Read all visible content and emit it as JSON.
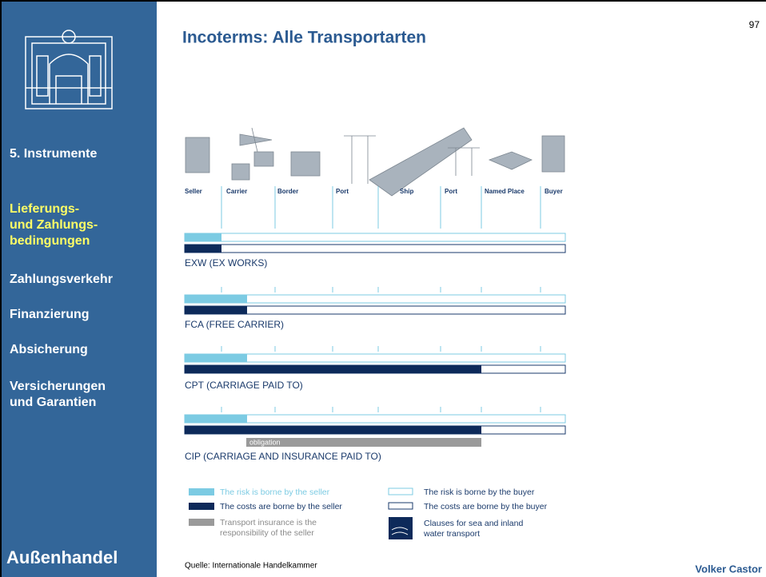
{
  "page_number": "97",
  "title": "Incoterms: Alle Transportarten",
  "sidebar": {
    "items": [
      {
        "lines": [
          "5. Instrumente"
        ]
      },
      {
        "lines": [
          "Lieferungs-",
          "und Zahlungs-",
          "bedingungen"
        ]
      },
      {
        "lines": [
          "Zahlungsverkehr"
        ]
      },
      {
        "lines": [
          "Finanzierung"
        ]
      },
      {
        "lines": [
          "Absicherung"
        ]
      },
      {
        "lines": [
          "Versicherungen",
          "und Garantien"
        ]
      }
    ],
    "footer": "Außenhandel"
  },
  "stations": [
    "Seller",
    "Carrier",
    "Border",
    "Port",
    "Ship",
    "Port",
    "Named Place",
    "Buyer"
  ],
  "terms": [
    "EXW (EX WORKS)",
    "FCA (FREE CARRIER)",
    "CPT (CARRIAGE PAID TO)",
    "CIP (CARRIAGE AND INSURANCE PAID TO)"
  ],
  "obligation": "obligation",
  "legend": {
    "risk_seller": [
      "The risk is borne by the seller"
    ],
    "costs_seller": [
      "The costs are borne by the seller"
    ],
    "insurance_seller": [
      "Transport insurance is the",
      "responsibility of the seller"
    ],
    "risk_buyer": [
      "The risk is borne by the buyer"
    ],
    "costs_buyer": [
      "The costs are borne by the buyer"
    ],
    "sea_clauses": [
      "Clauses for sea and inland",
      "water transport"
    ]
  },
  "source": "Quelle: Internationale Handelkammer",
  "author": "Volker Castor"
}
